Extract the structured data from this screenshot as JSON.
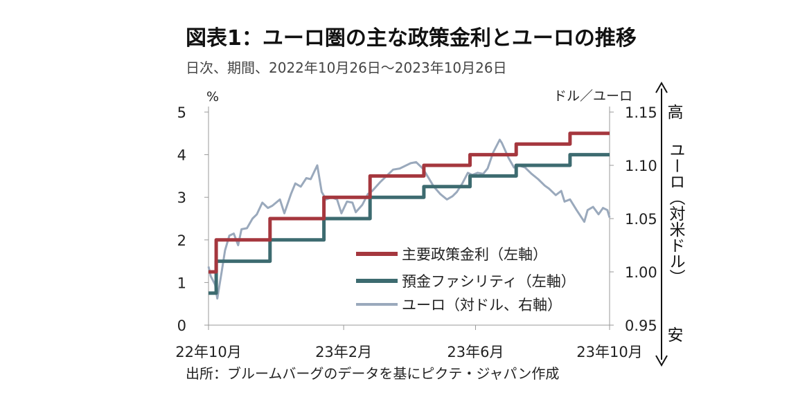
{
  "title": "図表1：ユーロ圏の主な政策金利とユーロの推移",
  "subtitle": "日次、期間、2022年10月26日～2023年10月26日",
  "source": "出所：ブルームバーグのデータを基にピクテ・ジャパン作成",
  "chart_data": {
    "type": "line",
    "x_range": [
      "2022-10-26",
      "2023-10-26"
    ],
    "x_tick_labels": [
      "22年10月",
      "23年2月",
      "23年6月",
      "23年10月"
    ],
    "x_tick_dates": [
      "2022-10-26",
      "2023-02-26",
      "2023-06-26",
      "2023-10-26"
    ],
    "left_axis": {
      "label": "%",
      "ylim": [
        0,
        5
      ],
      "ticks": [
        "0",
        "1",
        "2",
        "3",
        "4",
        "5"
      ]
    },
    "right_axis": {
      "label": "ドル／ユーロ",
      "ylim": [
        0.95,
        1.15
      ],
      "ticks": [
        "0.95",
        "1.00",
        "1.05",
        "1.10",
        "1.15"
      ]
    },
    "side_top": "高",
    "side_bottom": "安",
    "side_label": "ユーロ（対米ドル）",
    "legend_position": "center-right",
    "series": [
      {
        "name": "主要政策金利（左軸）",
        "axis": "left",
        "color": "#a5373e",
        "step": true,
        "points": [
          [
            "2022-10-26",
            1.25
          ],
          [
            "2022-11-02",
            2.0
          ],
          [
            "2022-12-21",
            2.5
          ],
          [
            "2023-02-08",
            3.0
          ],
          [
            "2023-03-22",
            3.5
          ],
          [
            "2023-05-10",
            3.75
          ],
          [
            "2023-06-21",
            4.0
          ],
          [
            "2023-08-02",
            4.25
          ],
          [
            "2023-09-20",
            4.5
          ],
          [
            "2023-10-26",
            4.5
          ]
        ]
      },
      {
        "name": "預金ファシリティ（左軸）",
        "axis": "left",
        "color": "#3d6b70",
        "step": true,
        "points": [
          [
            "2022-10-26",
            0.75
          ],
          [
            "2022-11-02",
            1.5
          ],
          [
            "2022-12-21",
            2.0
          ],
          [
            "2023-02-08",
            2.5
          ],
          [
            "2023-03-22",
            3.0
          ],
          [
            "2023-05-10",
            3.25
          ],
          [
            "2023-06-21",
            3.5
          ],
          [
            "2023-08-02",
            3.75
          ],
          [
            "2023-09-20",
            4.0
          ],
          [
            "2023-10-26",
            4.0
          ]
        ]
      },
      {
        "name": "ユーロ（対ドル、右軸）",
        "axis": "right",
        "color": "#9aa9bc",
        "step": false,
        "points": [
          [
            "2022-10-26",
            1.005
          ],
          [
            "2022-10-28",
            0.996
          ],
          [
            "2022-11-01",
            0.988
          ],
          [
            "2022-11-03",
            0.975
          ],
          [
            "2022-11-07",
            1.0
          ],
          [
            "2022-11-10",
            1.02
          ],
          [
            "2022-11-14",
            1.034
          ],
          [
            "2022-11-18",
            1.036
          ],
          [
            "2022-11-22",
            1.025
          ],
          [
            "2022-11-25",
            1.04
          ],
          [
            "2022-11-30",
            1.041
          ],
          [
            "2022-12-05",
            1.05
          ],
          [
            "2022-12-09",
            1.054
          ],
          [
            "2022-12-14",
            1.065
          ],
          [
            "2022-12-19",
            1.06
          ],
          [
            "2022-12-23",
            1.062
          ],
          [
            "2022-12-30",
            1.068
          ],
          [
            "2023-01-03",
            1.055
          ],
          [
            "2023-01-09",
            1.073
          ],
          [
            "2023-01-13",
            1.083
          ],
          [
            "2023-01-18",
            1.08
          ],
          [
            "2023-01-23",
            1.088
          ],
          [
            "2023-01-27",
            1.087
          ],
          [
            "2023-02-02",
            1.1
          ],
          [
            "2023-02-06",
            1.075
          ],
          [
            "2023-02-10",
            1.068
          ],
          [
            "2023-02-15",
            1.07
          ],
          [
            "2023-02-20",
            1.068
          ],
          [
            "2023-02-24",
            1.055
          ],
          [
            "2023-03-01",
            1.066
          ],
          [
            "2023-03-06",
            1.065
          ],
          [
            "2023-03-09",
            1.056
          ],
          [
            "2023-03-15",
            1.063
          ],
          [
            "2023-03-20",
            1.073
          ],
          [
            "2023-03-24",
            1.076
          ],
          [
            "2023-03-31",
            1.084
          ],
          [
            "2023-04-06",
            1.09
          ],
          [
            "2023-04-12",
            1.096
          ],
          [
            "2023-04-18",
            1.097
          ],
          [
            "2023-04-24",
            1.1
          ],
          [
            "2023-04-28",
            1.102
          ],
          [
            "2023-05-03",
            1.103
          ],
          [
            "2023-05-09",
            1.097
          ],
          [
            "2023-05-15",
            1.087
          ],
          [
            "2023-05-19",
            1.08
          ],
          [
            "2023-05-25",
            1.073
          ],
          [
            "2023-05-31",
            1.068
          ],
          [
            "2023-06-05",
            1.071
          ],
          [
            "2023-06-09",
            1.075
          ],
          [
            "2023-06-14",
            1.083
          ],
          [
            "2023-06-19",
            1.093
          ],
          [
            "2023-06-23",
            1.091
          ],
          [
            "2023-06-28",
            1.093
          ],
          [
            "2023-07-03",
            1.092
          ],
          [
            "2023-07-07",
            1.097
          ],
          [
            "2023-07-12",
            1.112
          ],
          [
            "2023-07-18",
            1.124
          ],
          [
            "2023-07-20",
            1.121
          ],
          [
            "2023-07-26",
            1.107
          ],
          [
            "2023-07-31",
            1.098
          ],
          [
            "2023-08-04",
            1.1
          ],
          [
            "2023-08-10",
            1.098
          ],
          [
            "2023-08-16",
            1.092
          ],
          [
            "2023-08-22",
            1.087
          ],
          [
            "2023-08-28",
            1.081
          ],
          [
            "2023-09-01",
            1.078
          ],
          [
            "2023-09-07",
            1.072
          ],
          [
            "2023-09-12",
            1.076
          ],
          [
            "2023-09-15",
            1.066
          ],
          [
            "2023-09-20",
            1.068
          ],
          [
            "2023-09-26",
            1.058
          ],
          [
            "2023-10-03",
            1.047
          ],
          [
            "2023-10-06",
            1.058
          ],
          [
            "2023-10-11",
            1.061
          ],
          [
            "2023-10-16",
            1.054
          ],
          [
            "2023-10-20",
            1.06
          ],
          [
            "2023-10-24",
            1.058
          ],
          [
            "2023-10-26",
            1.051
          ]
        ]
      }
    ]
  }
}
